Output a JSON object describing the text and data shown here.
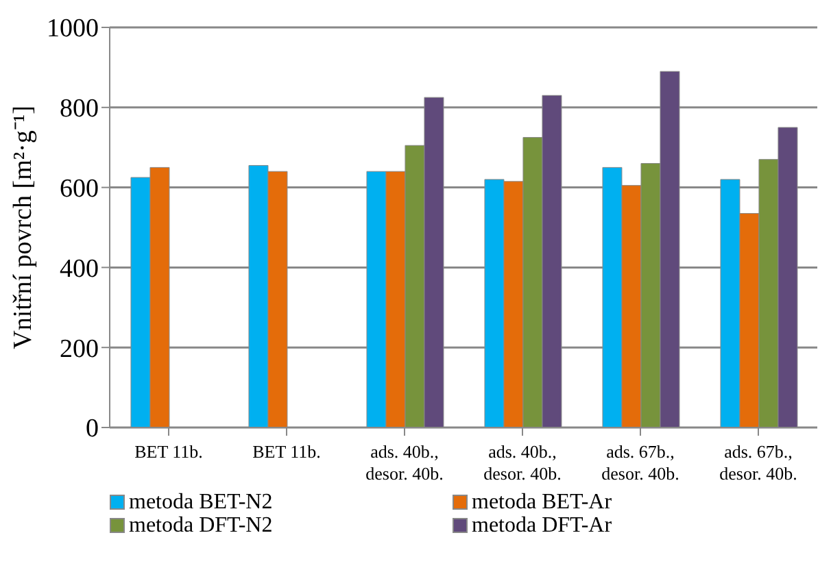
{
  "chart_data": {
    "type": "bar",
    "ylabel": "Vnitřní povrch [m²·g⁻¹]",
    "categories": [
      "BET 11b.",
      "BET 11b.",
      "ads. 40b., desor. 40b.",
      "ads. 40b., desor. 40b.",
      "ads. 67b., desor. 40b.",
      "ads. 67b., desor. 40b."
    ],
    "series": [
      {
        "name": "metoda BET-N2",
        "color": "#00b0f0",
        "values": [
          625,
          655,
          640,
          620,
          650,
          620
        ]
      },
      {
        "name": "metoda BET-Ar",
        "color": "#e46c0a",
        "values": [
          650,
          640,
          640,
          615,
          605,
          535
        ]
      },
      {
        "name": "metoda DFT-N2",
        "color": "#77933c",
        "values": [
          null,
          null,
          705,
          725,
          660,
          670
        ]
      },
      {
        "name": "metoda DFT-Ar",
        "color": "#604a7b",
        "values": [
          null,
          null,
          825,
          830,
          890,
          750
        ]
      }
    ],
    "ylim": [
      0,
      1000
    ],
    "yticks": [
      0,
      200,
      400,
      600,
      800,
      1000
    ],
    "grid": "y",
    "legend": "bottom"
  }
}
